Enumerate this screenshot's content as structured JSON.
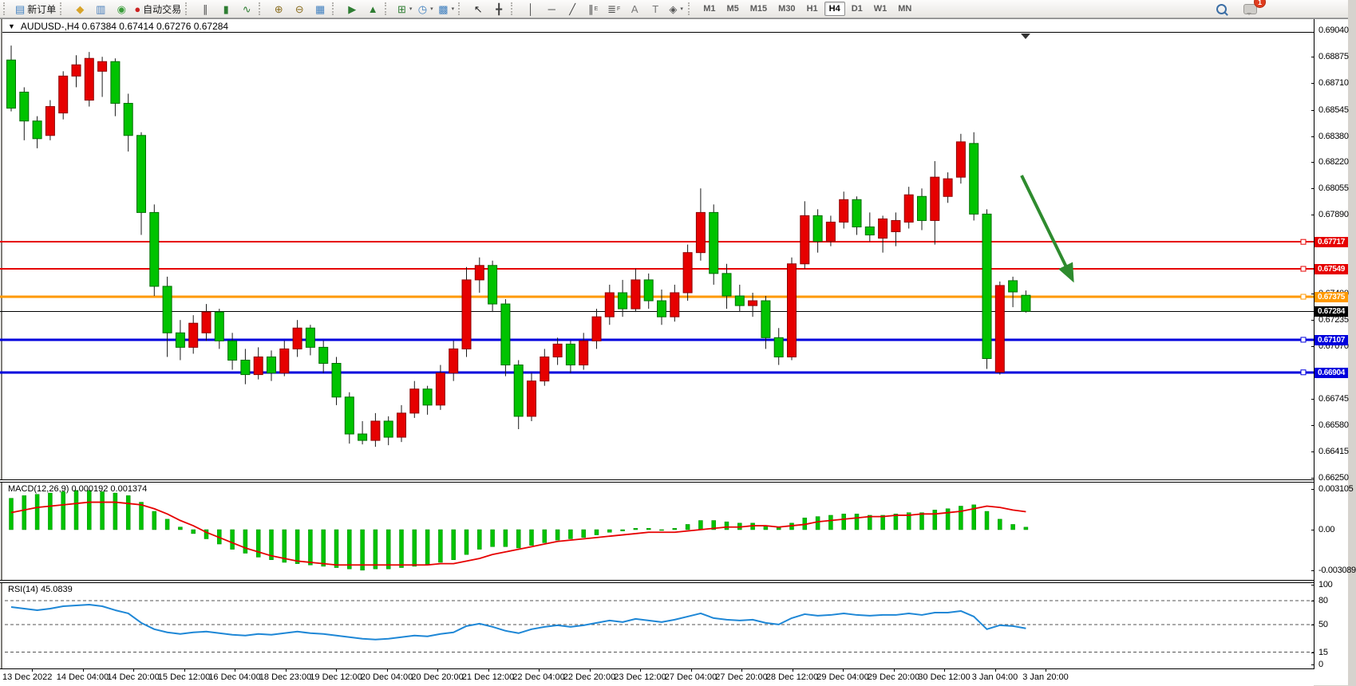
{
  "toolbar": {
    "groups": [
      {
        "buttons": [
          {
            "name": "new-order-button",
            "icon": "new-order-icon",
            "glyph": "▤",
            "color": "#3f7fbf",
            "label": "新订单"
          }
        ]
      },
      {
        "buttons": [
          {
            "name": "market-button",
            "icon": "market-icon",
            "glyph": "◆",
            "color": "#d8a429"
          },
          {
            "name": "signals-button",
            "icon": "signals-icon",
            "glyph": "▥",
            "color": "#4a7ebb"
          },
          {
            "name": "webterminal-button",
            "icon": "antenna-icon",
            "glyph": "◉",
            "color": "#3a9d3a"
          },
          {
            "name": "autotrading-button",
            "icon": "autotrade-stop-icon",
            "glyph": "●",
            "color": "#cc2222",
            "label": "自动交易"
          }
        ]
      },
      {
        "buttons": [
          {
            "name": "bar-chart-button",
            "icon": "bar-chart-icon",
            "glyph": "∥",
            "color": "#4a4a4a"
          },
          {
            "name": "candlestick-chart-button",
            "icon": "candlestick-icon",
            "glyph": "▮",
            "color": "#2e7d32"
          },
          {
            "name": "line-chart-button",
            "icon": "line-chart-icon",
            "glyph": "∿",
            "color": "#2e7d32"
          }
        ]
      },
      {
        "buttons": [
          {
            "name": "zoom-in-button",
            "icon": "zoom-in-icon",
            "glyph": "⊕",
            "color": "#8a6d1f"
          },
          {
            "name": "zoom-out-button",
            "icon": "zoom-out-icon",
            "glyph": "⊖",
            "color": "#8a6d1f"
          },
          {
            "name": "tile-windows-button",
            "icon": "tile-windows-icon",
            "glyph": "▦",
            "color": "#3f7fbf"
          }
        ]
      },
      {
        "buttons": [
          {
            "name": "auto-scroll-button",
            "icon": "auto-scroll-icon",
            "glyph": "▶",
            "color": "#2e7d32"
          },
          {
            "name": "chart-shift-button",
            "icon": "chart-shift-icon",
            "glyph": "▲",
            "color": "#2e7d32"
          }
        ]
      },
      {
        "buttons": [
          {
            "name": "new-chart-button",
            "icon": "new-chart-icon",
            "glyph": "⊞",
            "color": "#2e7d32",
            "caret": true
          },
          {
            "name": "periods-button",
            "icon": "clock-icon",
            "glyph": "◷",
            "color": "#3f7fbf",
            "caret": true
          },
          {
            "name": "templates-button",
            "icon": "chart-template-icon",
            "glyph": "▩",
            "color": "#3f7fbf",
            "caret": true
          }
        ]
      },
      {
        "buttons": [
          {
            "name": "cursor-button",
            "icon": "cursor-icon",
            "glyph": "↖",
            "color": "#222222"
          },
          {
            "name": "crosshair-button",
            "icon": "crosshair-icon",
            "glyph": "╋",
            "color": "#444444"
          }
        ]
      },
      {
        "buttons": [
          {
            "name": "vertical-line-button",
            "icon": "vertical-line-icon",
            "glyph": "│",
            "color": "#444444"
          },
          {
            "name": "horizontal-line-button",
            "icon": "horizontal-line-icon",
            "glyph": "─",
            "color": "#444444"
          },
          {
            "name": "trendline-button",
            "icon": "trendline-icon",
            "glyph": "╱",
            "color": "#444444"
          },
          {
            "name": "equidistant-channel-button",
            "icon": "channel-icon",
            "glyph": "∥",
            "sub": "E",
            "color": "#444444"
          },
          {
            "name": "fibonacci-button",
            "icon": "fibonacci-icon",
            "glyph": "≣",
            "sub": "F",
            "color": "#444444"
          },
          {
            "name": "text-button",
            "icon": "text-icon",
            "glyph": "A",
            "color": "#777777"
          },
          {
            "name": "text-label-button",
            "icon": "text-label-icon",
            "glyph": "T",
            "color": "#777777"
          },
          {
            "name": "arrows-tool-button",
            "icon": "arrows-tool-icon",
            "glyph": "◈",
            "color": "#555555",
            "caret": true
          }
        ]
      }
    ],
    "timeframes": [
      "M1",
      "M5",
      "M15",
      "M30",
      "H1",
      "H4",
      "D1",
      "W1",
      "MN"
    ],
    "active_timeframe": "H4",
    "notification_count": "1"
  },
  "chart": {
    "title": "AUDUSD-,H4   0.67384 0.67414 0.67276 0.67284",
    "macd_label": "MACD(12,26,9) 0.000192 0.001374",
    "rsi_label": "RSI(14) 45.0839"
  },
  "chart_data": {
    "type": "candlestick",
    "symbol": "AUDUSD-",
    "timeframe": "H4",
    "current_bar": {
      "open": 0.67384,
      "high": 0.67414,
      "low": 0.67276,
      "close": 0.67284
    },
    "up_color": "#e60000",
    "down_color": "#00c300",
    "price_axis": {
      "min": 0.6625,
      "max": 0.6904,
      "ticks": [
        "0.69040",
        "0.68875",
        "0.68710",
        "0.68545",
        "0.68380",
        "0.68220",
        "0.68055",
        "0.67890",
        "0.67400",
        "0.67235",
        "0.67070",
        "0.66745",
        "0.66580",
        "0.66415",
        "0.66250"
      ]
    },
    "levels": [
      {
        "value": 0.67717,
        "label": "0.67717",
        "color": "#e60000",
        "width": 2
      },
      {
        "value": 0.67549,
        "label": "0.67549",
        "color": "#e60000",
        "width": 2
      },
      {
        "value": 0.67375,
        "label": "0.67375",
        "color": "#ff9900",
        "width": 3
      },
      {
        "value": 0.67284,
        "label": "0.67284",
        "color": "#000000",
        "width": 1,
        "current": true
      },
      {
        "value": 0.67107,
        "label": "0.67107",
        "color": "#0000dd",
        "width": 3
      },
      {
        "value": 0.66904,
        "label": "0.66904",
        "color": "#0000dd",
        "width": 3
      }
    ],
    "time_labels": [
      "13 Dec 2022",
      "14 Dec 04:00",
      "14 Dec 20:00",
      "15 Dec 12:00",
      "16 Dec 04:00",
      "18 Dec 23:00",
      "19 Dec 12:00",
      "20 Dec 04:00",
      "20 Dec 20:00",
      "21 Dec 12:00",
      "22 Dec 04:00",
      "22 Dec 20:00",
      "23 Dec 12:00",
      "27 Dec 04:00",
      "27 Dec 20:00",
      "28 Dec 12:00",
      "29 Dec 04:00",
      "29 Dec 20:00",
      "30 Dec 12:00",
      "3 Jan 04:00",
      "3 Jan 20:00"
    ],
    "ohlc": [
      [
        0.6885,
        0.6894,
        0.6853,
        0.6855
      ],
      [
        0.6865,
        0.6868,
        0.6835,
        0.6847
      ],
      [
        0.6847,
        0.685,
        0.683,
        0.6836
      ],
      [
        0.6838,
        0.686,
        0.6835,
        0.6856
      ],
      [
        0.6852,
        0.6878,
        0.6848,
        0.6875
      ],
      [
        0.6875,
        0.6888,
        0.6868,
        0.6882
      ],
      [
        0.686,
        0.689,
        0.6856,
        0.6886
      ],
      [
        0.6878,
        0.6887,
        0.6862,
        0.6884
      ],
      [
        0.6884,
        0.6886,
        0.685,
        0.6858
      ],
      [
        0.6858,
        0.6864,
        0.6828,
        0.6838
      ],
      [
        0.6838,
        0.684,
        0.6776,
        0.679
      ],
      [
        0.679,
        0.6795,
        0.6738,
        0.6744
      ],
      [
        0.6744,
        0.675,
        0.67,
        0.6715
      ],
      [
        0.6715,
        0.6723,
        0.6698,
        0.6706
      ],
      [
        0.6706,
        0.6726,
        0.6702,
        0.6721
      ],
      [
        0.6715,
        0.6733,
        0.671,
        0.6728
      ],
      [
        0.6728,
        0.673,
        0.6705,
        0.671
      ],
      [
        0.671,
        0.6715,
        0.6692,
        0.6698
      ],
      [
        0.6698,
        0.6705,
        0.6683,
        0.6689
      ],
      [
        0.6689,
        0.6706,
        0.6686,
        0.67
      ],
      [
        0.67,
        0.6704,
        0.6685,
        0.669
      ],
      [
        0.669,
        0.671,
        0.6688,
        0.6705
      ],
      [
        0.6705,
        0.6723,
        0.67,
        0.6718
      ],
      [
        0.6718,
        0.672,
        0.6701,
        0.6706
      ],
      [
        0.6706,
        0.671,
        0.669,
        0.6696
      ],
      [
        0.6696,
        0.67,
        0.667,
        0.6675
      ],
      [
        0.6675,
        0.6678,
        0.6646,
        0.6652
      ],
      [
        0.6652,
        0.666,
        0.66455,
        0.6648
      ],
      [
        0.6648,
        0.6665,
        0.6644,
        0.666
      ],
      [
        0.666,
        0.6663,
        0.6645,
        0.665
      ],
      [
        0.665,
        0.667,
        0.6647,
        0.6665
      ],
      [
        0.6665,
        0.6685,
        0.6662,
        0.668
      ],
      [
        0.668,
        0.6682,
        0.6664,
        0.667
      ],
      [
        0.667,
        0.6695,
        0.6667,
        0.669
      ],
      [
        0.669,
        0.671,
        0.6685,
        0.6705
      ],
      [
        0.6705,
        0.6756,
        0.67,
        0.6748
      ],
      [
        0.6748,
        0.6762,
        0.674,
        0.6757
      ],
      [
        0.6757,
        0.676,
        0.6728,
        0.6733
      ],
      [
        0.6733,
        0.6736,
        0.6688,
        0.6695
      ],
      [
        0.6695,
        0.6698,
        0.6655,
        0.6663
      ],
      [
        0.6663,
        0.669,
        0.666,
        0.6685
      ],
      [
        0.6685,
        0.6705,
        0.6682,
        0.67
      ],
      [
        0.67,
        0.6712,
        0.6695,
        0.6708
      ],
      [
        0.6708,
        0.671,
        0.669,
        0.6695
      ],
      [
        0.6695,
        0.6715,
        0.6692,
        0.671
      ],
      [
        0.671,
        0.673,
        0.6705,
        0.6725
      ],
      [
        0.6725,
        0.6745,
        0.672,
        0.674
      ],
      [
        0.674,
        0.6748,
        0.6725,
        0.673
      ],
      [
        0.673,
        0.6755,
        0.6728,
        0.6748
      ],
      [
        0.6748,
        0.6752,
        0.673,
        0.6735
      ],
      [
        0.6735,
        0.6742,
        0.672,
        0.6725
      ],
      [
        0.6725,
        0.6745,
        0.6722,
        0.674
      ],
      [
        0.674,
        0.677,
        0.6735,
        0.6765
      ],
      [
        0.6765,
        0.6805,
        0.676,
        0.679
      ],
      [
        0.679,
        0.6795,
        0.6745,
        0.6752
      ],
      [
        0.6752,
        0.6758,
        0.673,
        0.6738
      ],
      [
        0.6738,
        0.6745,
        0.6728,
        0.6732
      ],
      [
        0.6732,
        0.674,
        0.6725,
        0.6735
      ],
      [
        0.6735,
        0.6738,
        0.6705,
        0.6712
      ],
      [
        0.6712,
        0.6718,
        0.6695,
        0.67
      ],
      [
        0.67,
        0.6762,
        0.6698,
        0.6758
      ],
      [
        0.6758,
        0.6797,
        0.6755,
        0.6788
      ],
      [
        0.6788,
        0.6792,
        0.6765,
        0.6772
      ],
      [
        0.6772,
        0.6788,
        0.6769,
        0.6784
      ],
      [
        0.6784,
        0.6803,
        0.678,
        0.6798
      ],
      [
        0.6798,
        0.68,
        0.6776,
        0.6781
      ],
      [
        0.6781,
        0.679,
        0.6772,
        0.6776
      ],
      [
        0.6774,
        0.6788,
        0.6765,
        0.6786
      ],
      [
        0.6778,
        0.679,
        0.6769,
        0.6785
      ],
      [
        0.6784,
        0.6806,
        0.678,
        0.6801
      ],
      [
        0.68,
        0.6805,
        0.6779,
        0.6785
      ],
      [
        0.6785,
        0.6822,
        0.677,
        0.6812
      ],
      [
        0.68,
        0.6815,
        0.6796,
        0.6811
      ],
      [
        0.6812,
        0.6839,
        0.6808,
        0.6834
      ],
      [
        0.6833,
        0.684,
        0.6785,
        0.6789
      ],
      [
        0.6789,
        0.6792,
        0.66925,
        0.6699
      ],
      [
        0.66905,
        0.6747,
        0.6689,
        0.67445
      ],
      [
        0.67475,
        0.675,
        0.6731,
        0.67405
      ],
      [
        0.67384,
        0.67414,
        0.67276,
        0.67284
      ]
    ],
    "indicators": {
      "macd": {
        "name": "MACD(12,26,9)",
        "values_text": "0.000192 0.001374",
        "axis": [
          {
            "label": "0.003105",
            "value": 0.003105
          },
          {
            "label": "0.00",
            "value": 0
          },
          {
            "label": "-0.003089",
            "value": -0.003089
          }
        ],
        "histogram_color": "#00c300",
        "signal_color": "#e60000",
        "histogram": [
          0.0024,
          0.0026,
          0.0027,
          0.0028,
          0.0029,
          0.003,
          0.003,
          0.0029,
          0.0028,
          0.0026,
          0.0021,
          0.0014,
          0.0008,
          0.0002,
          -0.0003,
          -0.0007,
          -0.0011,
          -0.0015,
          -0.0018,
          -0.0021,
          -0.0023,
          -0.0025,
          -0.0026,
          -0.0027,
          -0.0028,
          -0.0029,
          -0.003,
          -0.0031,
          -0.003,
          -0.003,
          -0.0029,
          -0.0028,
          -0.0027,
          -0.0025,
          -0.0023,
          -0.0019,
          -0.0015,
          -0.0013,
          -0.0013,
          -0.0014,
          -0.0012,
          -0.001,
          -0.0008,
          -0.0007,
          -0.0006,
          -0.0004,
          -0.0002,
          -0.0001,
          0.0001,
          0.0001,
          0.0,
          0.0001,
          0.0004,
          0.0007,
          0.0007,
          0.0006,
          0.0005,
          0.0005,
          0.0003,
          0.0002,
          0.0005,
          0.0009,
          0.001,
          0.0011,
          0.0012,
          0.0012,
          0.0011,
          0.0011,
          0.0012,
          0.0013,
          0.0013,
          0.0015,
          0.0016,
          0.0018,
          0.0019,
          0.0014,
          0.0008,
          0.0004,
          0.000192
        ],
        "signal": [
          0.0013,
          0.0015,
          0.0017,
          0.0018,
          0.0019,
          0.002,
          0.0021,
          0.0021,
          0.0021,
          0.002,
          0.0019,
          0.0016,
          0.0012,
          0.0007,
          0.0003,
          -0.0002,
          -0.0006,
          -0.001,
          -0.0014,
          -0.0017,
          -0.002,
          -0.0022,
          -0.0024,
          -0.0025,
          -0.0026,
          -0.0027,
          -0.0027,
          -0.0027,
          -0.0027,
          -0.0027,
          -0.0027,
          -0.0027,
          -0.0027,
          -0.0026,
          -0.0026,
          -0.0024,
          -0.0022,
          -0.0019,
          -0.0017,
          -0.0015,
          -0.0013,
          -0.0011,
          -0.0009,
          -0.0008,
          -0.0007,
          -0.0006,
          -0.0005,
          -0.0004,
          -0.0003,
          -0.0002,
          -0.0002,
          -0.0002,
          -0.0001,
          0.0,
          0.0001,
          0.0002,
          0.0002,
          0.0003,
          0.0003,
          0.0002,
          0.0003,
          0.0004,
          0.0006,
          0.0007,
          0.0008,
          0.0009,
          0.001,
          0.001,
          0.0011,
          0.0011,
          0.0012,
          0.0012,
          0.0013,
          0.0014,
          0.0016,
          0.0018,
          0.0017,
          0.0015,
          0.001374
        ]
      },
      "rsi": {
        "name": "RSI(14)",
        "value_text": "45.0839",
        "line_color": "#1e87d6",
        "axis": [
          {
            "label": "100",
            "value": 100
          },
          {
            "label": "80",
            "value": 80
          },
          {
            "label": "50",
            "value": 50
          },
          {
            "label": "15",
            "value": 15
          },
          {
            "label": "0",
            "value": 0
          }
        ],
        "dashed_levels": [
          80,
          50,
          15
        ],
        "series": [
          72,
          70,
          68,
          70,
          73,
          74,
          75,
          73,
          68,
          64,
          52,
          44,
          40,
          38,
          40,
          41,
          39,
          37,
          36,
          38,
          37,
          39,
          41,
          39,
          38,
          36,
          34,
          32,
          31,
          32,
          34,
          36,
          35,
          38,
          40,
          48,
          51,
          47,
          42,
          39,
          44,
          47,
          49,
          47,
          49,
          52,
          55,
          53,
          57,
          55,
          53,
          56,
          60,
          64,
          58,
          56,
          55,
          56,
          52,
          50,
          58,
          63,
          61,
          62,
          64,
          62,
          61,
          62,
          62,
          64,
          62,
          65,
          65,
          67,
          60,
          44,
          49,
          48,
          45.0839
        ]
      }
    },
    "annotation_arrow": {
      "from_x": 1280,
      "from_y": 220,
      "to_x": 1343,
      "to_y": 349,
      "color": "#2e8b2e"
    }
  }
}
